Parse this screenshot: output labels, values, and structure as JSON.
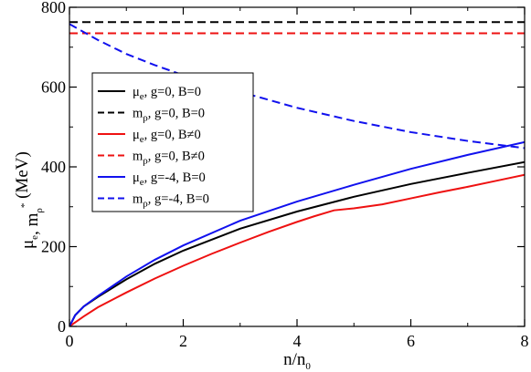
{
  "chart_data": {
    "type": "line",
    "xlabel": "n/n",
    "xlabel_sub": "0",
    "ylabel_parts": [
      {
        "t": "μ",
        "sub": "e"
      },
      {
        "t": ", m",
        "sub": "ρ",
        "sup": "*"
      },
      {
        "t": "  (MeV)"
      }
    ],
    "xlim": [
      0,
      8
    ],
    "ylim": [
      0,
      800
    ],
    "xticks": [
      0,
      2,
      4,
      6,
      8
    ],
    "yticks": [
      0,
      200,
      400,
      600,
      800
    ],
    "grid": false,
    "legend_position": "upper-left",
    "series": [
      {
        "name": "μ_e, g=0, B=0",
        "label_base": "μ",
        "label_sub": "e",
        "label_rest": ", g=0, B=0",
        "color": "#000000",
        "dash": false,
        "x": [
          0,
          0.1,
          0.25,
          0.5,
          1,
          1.5,
          2,
          3,
          4,
          5,
          6,
          7,
          8
        ],
        "y": [
          0,
          28,
          50,
          74,
          118,
          157,
          190,
          245,
          288,
          325,
          357,
          385,
          412
        ]
      },
      {
        "name": "m_ρ, g=0, B=0",
        "label_base": "m",
        "label_sub": "ρ",
        "label_rest": ", g=0, B=0",
        "color": "#000000",
        "dash": true,
        "x": [
          0,
          8
        ],
        "y": [
          763,
          763
        ]
      },
      {
        "name": "μ_e, g=0, B≠0",
        "label_base": "μ",
        "label_sub": "e",
        "label_rest": ", g=0, B≠0",
        "color": "#ee1111",
        "dash": false,
        "x": [
          0,
          0.25,
          0.5,
          1,
          1.5,
          2,
          2.5,
          3,
          3.5,
          4,
          4.3,
          4.65,
          5,
          5.5,
          6,
          6.5,
          7,
          7.5,
          8
        ],
        "y": [
          0,
          25,
          48,
          85,
          120,
          152,
          182,
          210,
          237,
          262,
          276,
          291,
          296,
          306,
          321,
          336,
          350,
          365,
          380
        ]
      },
      {
        "name": "m_ρ, g=0, B≠0",
        "label_base": "m",
        "label_sub": "ρ",
        "label_rest": ", g=0, B≠0",
        "color": "#ee1111",
        "dash": true,
        "x": [
          0,
          8
        ],
        "y": [
          735,
          735
        ]
      },
      {
        "name": "μ_e, g=-4, B=0",
        "label_base": "μ",
        "label_sub": "e",
        "label_rest": ", g=-4, B=0",
        "color": "#1111ee",
        "dash": false,
        "x": [
          0,
          0.1,
          0.25,
          0.5,
          1,
          1.5,
          2,
          3,
          4,
          5,
          6,
          7,
          8
        ],
        "y": [
          0,
          28,
          50,
          76,
          125,
          167,
          203,
          265,
          313,
          355,
          395,
          430,
          462
        ]
      },
      {
        "name": "m_ρ, g=-4, B=0",
        "label_base": "m",
        "label_sub": "ρ",
        "label_rest": ", g=-4, B=0",
        "color": "#1111ee",
        "dash": true,
        "x": [
          0,
          0.25,
          0.5,
          1,
          1.5,
          2,
          3,
          4,
          5,
          6,
          7,
          8
        ],
        "y": [
          758,
          738,
          718,
          683,
          655,
          630,
          588,
          548,
          515,
          487,
          465,
          447
        ]
      }
    ]
  }
}
